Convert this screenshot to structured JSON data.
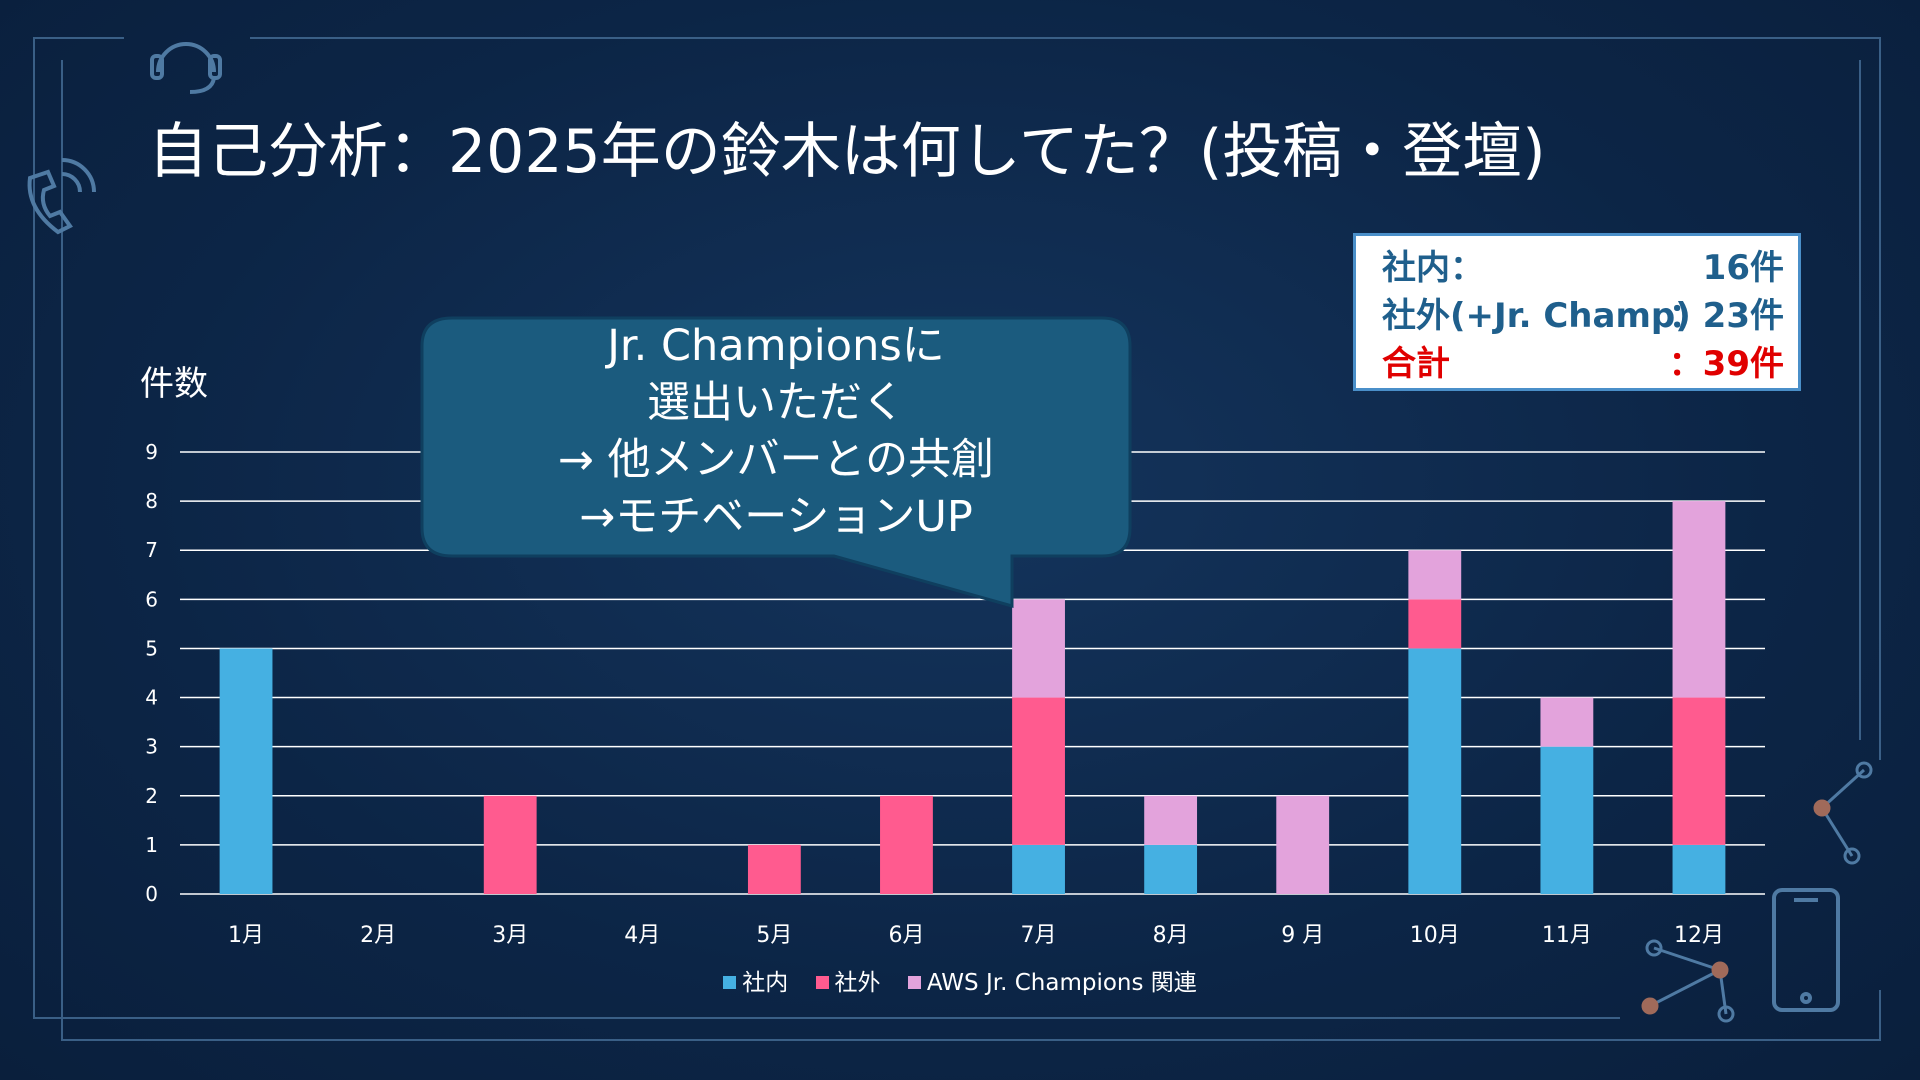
{
  "title": "自己分析：2025年の鈴木は何してた？(投稿・登壇)",
  "summary": {
    "rows": [
      {
        "label": "社内：",
        "value": "16件",
        "color": "#1f5f8c"
      },
      {
        "label": "社外(+Jr. Champ)",
        "value": "：23件",
        "color": "#1f5f8c"
      },
      {
        "label": "合計",
        "value": "：39件",
        "color": "#e00000"
      }
    ]
  },
  "callout": {
    "lines": [
      "Jr. Championsに",
      "選出いただく",
      "→ 他メンバーとの共創",
      "→モチベーションUP"
    ]
  },
  "chart_data": {
    "type": "bar",
    "stacked": true,
    "ylabel": "件数",
    "categories": [
      "1月",
      "2月",
      "3月",
      "4月",
      "5月",
      "6月",
      "7月",
      "8月",
      "9 月",
      "10月",
      "11月",
      "12月"
    ],
    "series": [
      {
        "name": "社内",
        "color": "#45b0e2",
        "values": [
          5,
          0,
          0,
          0,
          0,
          0,
          1,
          1,
          0,
          5,
          3,
          1
        ]
      },
      {
        "name": "社外",
        "color": "#ff5b8f",
        "values": [
          0,
          0,
          2,
          0,
          1,
          2,
          3,
          0,
          0,
          1,
          0,
          3
        ]
      },
      {
        "name": "AWS Jr. Champions 関連",
        "color": "#e3a3dc",
        "values": [
          0,
          0,
          0,
          0,
          0,
          0,
          2,
          1,
          2,
          1,
          1,
          4
        ]
      }
    ],
    "ylim": [
      0,
      9
    ],
    "yticks": [
      "0",
      "1",
      "2",
      "3",
      "4",
      "5",
      "6",
      "7",
      "8",
      "9"
    ],
    "grid": true,
    "legend": "bottom"
  }
}
